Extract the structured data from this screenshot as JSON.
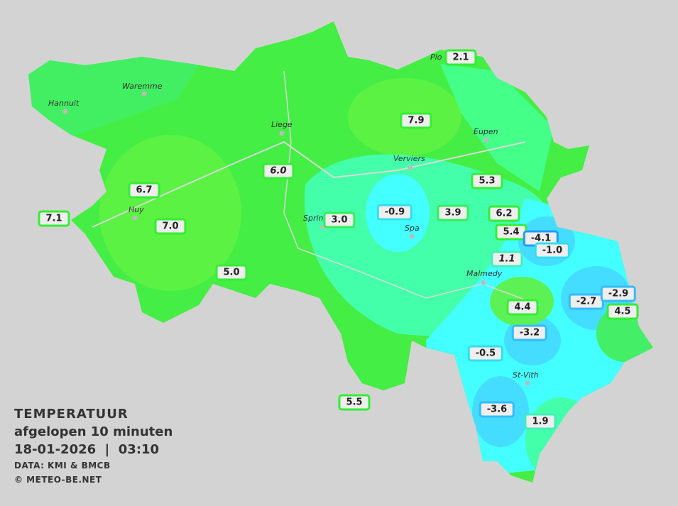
{
  "legend": {
    "title": "TEMPERATUUR",
    "subtitle": "afgelopen 10 minuten",
    "datetime": "18-01-2026  |  03:10",
    "source": "DATA: KMI & BMCB",
    "copyright": "© METEO-BE.NET"
  },
  "colors": {
    "background": "#d3d3d3",
    "warm": "#44ff44",
    "mild": "#44ff99",
    "cold": "#44ffff",
    "colder": "#44ddff",
    "border_green": "#33ee33",
    "border_cyan": "#33ddee",
    "border_blue": "#2299ff"
  },
  "cities": [
    "Plo",
    "Waremme",
    "Hannuit",
    "Liege",
    "Eupen",
    "Verviers",
    "Huy",
    "Sprin",
    "Spa",
    "Malmedy",
    "St-Vith"
  ],
  "stations": [
    {
      "value": "2.1",
      "color": "#33ee33"
    },
    {
      "value": "7.9",
      "color": "#33ee33"
    },
    {
      "value": "6.0",
      "color": "#33ee33",
      "italic": true
    },
    {
      "value": "5.3",
      "color": "#33ee33"
    },
    {
      "value": "6.7",
      "color": "#33ee33"
    },
    {
      "value": "7.1",
      "color": "#33ee33"
    },
    {
      "value": "3.0",
      "color": "#33ee55"
    },
    {
      "value": "-0.9",
      "color": "#33ddee"
    },
    {
      "value": "3.9",
      "color": "#33ee55"
    },
    {
      "value": "6.2",
      "color": "#33ee33"
    },
    {
      "value": "5.4",
      "color": "#33ee33"
    },
    {
      "value": "-4.1",
      "color": "#2299ff"
    },
    {
      "value": "-1.0",
      "color": "#33ddee"
    },
    {
      "value": "7.0",
      "color": "#33ee33"
    },
    {
      "value": "1.1",
      "color": "#44eebb",
      "italic": true
    },
    {
      "value": "5.0",
      "color": "#33ee33"
    },
    {
      "value": "-2.7",
      "color": "#33bbff"
    },
    {
      "value": "-2.9",
      "color": "#33bbff"
    },
    {
      "value": "4.5",
      "color": "#33ee33"
    },
    {
      "value": "4.4",
      "color": "#33ee33"
    },
    {
      "value": "-3.2",
      "color": "#33bbff"
    },
    {
      "value": "-0.5",
      "color": "#33ddee"
    },
    {
      "value": "5.5",
      "color": "#33ee33"
    },
    {
      "value": "-3.6",
      "color": "#33bbff"
    },
    {
      "value": "1.9",
      "color": "#44eebb"
    }
  ]
}
